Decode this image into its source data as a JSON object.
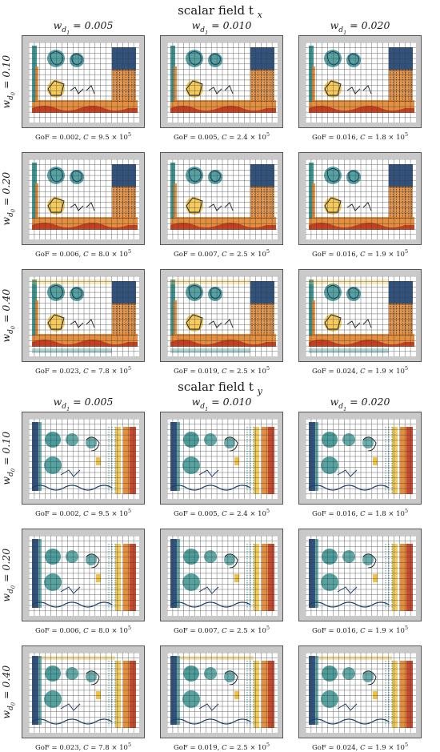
{
  "sections": [
    {
      "title": "scalar field t",
      "title_sub": "x",
      "variant": "tx",
      "columns": [
        "w_d1 = 0.005",
        "w_d1 = 0.010",
        "w_d1 = 0.020"
      ],
      "rows": [
        "w_d0 = 0.10",
        "w_d0 = 0.20",
        "w_d0 = 0.40"
      ],
      "captions": [
        [
          "GoF = 0.002, C = 9.5 × 10^5",
          "GoF = 0.005, C = 2.4 × 10^5",
          "GoF = 0.016, C = 1.8 × 10^5"
        ],
        [
          "GoF = 0.006, C = 8.0 × 10^5",
          "GoF = 0.007, C = 2.5 × 10^5",
          "GoF = 0.016, C = 1.9 × 10^5"
        ],
        [
          "GoF = 0.023, C = 7.8 × 10^5",
          "GoF = 0.019, C = 2.5 × 10^5",
          "GoF = 0.024, C = 1.9 × 10^5"
        ]
      ]
    },
    {
      "title": "scalar field t",
      "title_sub": "y",
      "variant": "ty",
      "columns": [
        "w_d1 = 0.005",
        "w_d1 = 0.010",
        "w_d1 = 0.020"
      ],
      "rows": [
        "w_d0 = 0.10",
        "w_d0 = 0.20",
        "w_d0 = 0.40"
      ],
      "captions": [
        [
          "GoF = 0.002, C = 9.5 × 10^5",
          "GoF = 0.005, C = 2.4 × 10^5",
          "GoF = 0.016, C = 1.8 × 10^5"
        ],
        [
          "GoF = 0.006, C = 8.0 × 10^5",
          "GoF = 0.007, C = 2.5 × 10^5",
          "GoF = 0.016, C = 1.9 × 10^5"
        ],
        [
          "GoF = 0.023, C = 7.8 × 10^5",
          "GoF = 0.019, C = 2.5 × 10^5",
          "GoF = 0.024, C = 1.9 × 10^5"
        ]
      ]
    }
  ],
  "colors": {
    "frame": "#c9c9c9",
    "grid": "#3a3a3a",
    "teal": "#2a8c8a",
    "dark_blue": "#1b3f6e",
    "orange": "#e07a1c",
    "red": "#c0361a",
    "yellow": "#f3c240"
  }
}
